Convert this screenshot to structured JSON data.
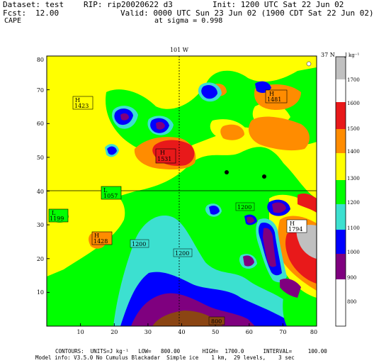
{
  "header": {
    "dataset_label": "Dataset: test",
    "rip_label": "RIP: rip20020622 d3",
    "init": "Init: 1200 UTC Sat 22 Jun 02",
    "fcst_label": "Fcst:",
    "fcst_value": "12.00",
    "valid": "Valid: 0000 UTC Sun 23 Jun 02 (1900 CDT Sat 22 Jun 02)",
    "field": "CAPE",
    "sigma": "at sigma = 0.998"
  },
  "map": {
    "top_label": "101 W",
    "right_label": "37 N",
    "x_ticks": [
      "10",
      "20",
      "30",
      "40",
      "50",
      "60",
      "70",
      "80"
    ],
    "y_ticks": [
      "10",
      "20",
      "30",
      "40",
      "50",
      "60",
      "70",
      "80"
    ],
    "highs": [
      {
        "mark": "H",
        "value": "1423"
      },
      {
        "mark": "H",
        "value": "1428"
      },
      {
        "mark": "H",
        "value": "1481"
      },
      {
        "mark": "H",
        "value": "1794"
      },
      {
        "mark": "H",
        "value": "1531"
      }
    ],
    "lows": [
      {
        "mark": "L",
        "value": "1199"
      },
      {
        "mark": "L",
        "value": "1057"
      }
    ],
    "contour_labels": [
      "1200",
      "1200",
      "1200",
      "800"
    ]
  },
  "legend": {
    "unit": "J kg⁻¹",
    "levels": [
      {
        "label": "1700",
        "color": "#c0c0c0"
      },
      {
        "label": "1600",
        "color": "#ffffff"
      },
      {
        "label": "1500",
        "color": "#e8191a"
      },
      {
        "label": "1400",
        "color": "#ff8c00"
      },
      {
        "label": "1300",
        "color": "#ffff00"
      },
      {
        "label": "1200",
        "color": "#00ff00"
      },
      {
        "label": "1100",
        "color": "#3ce0d0"
      },
      {
        "label": "1000",
        "color": "#0000ff"
      },
      {
        "label": "900",
        "color": "#7f007f"
      },
      {
        "label": "800",
        "color": "#8b4513"
      }
    ]
  },
  "footer": {
    "contours": "CONTOURS:  UNITS=J kg⁻¹   LOW=   800.00       HIGH=  1700.0      INTERVAL=     100.00",
    "model": "Model info: V3.5.0 No Cumulus Blackadar  Simple ice    1 km,  29 levels,    3 sec"
  }
}
